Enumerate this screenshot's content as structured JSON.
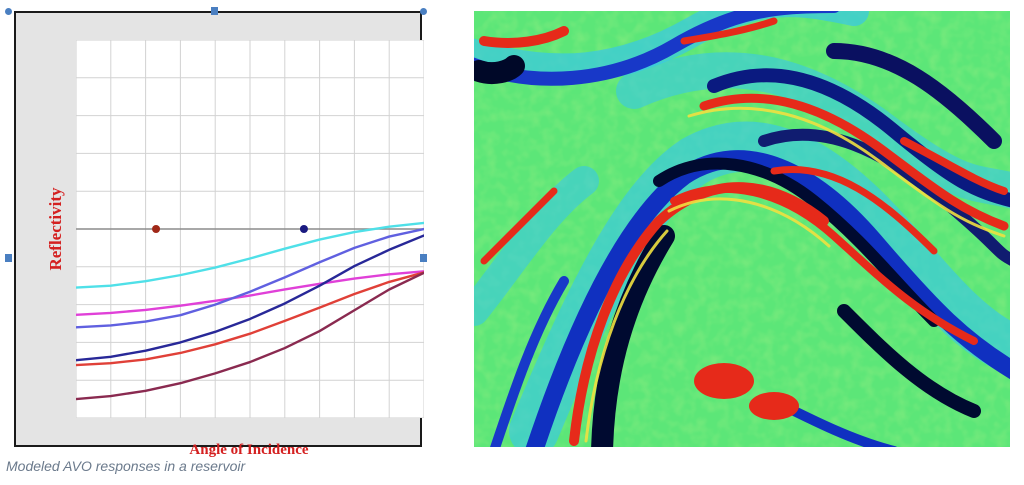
{
  "chart_data": {
    "type": "line",
    "xlabel": "Angle of Incidence",
    "ylabel": "Reflectivity",
    "title": "",
    "xlim": [
      0,
      10
    ],
    "ylim": [
      -5,
      5
    ],
    "grid": true,
    "x": [
      0,
      1,
      2,
      3,
      4,
      5,
      6,
      7,
      8,
      9,
      10
    ],
    "series": [
      {
        "color": "#4fe0e8",
        "values": [
          -1.55,
          -1.5,
          -1.38,
          -1.22,
          -1.02,
          -0.78,
          -0.52,
          -0.28,
          -0.08,
          0.06,
          0.16
        ]
      },
      {
        "color": "#e040d8",
        "values": [
          -2.27,
          -2.22,
          -2.14,
          -2.03,
          -1.9,
          -1.76,
          -1.6,
          -1.45,
          -1.31,
          -1.2,
          -1.12
        ]
      },
      {
        "color": "#6060e0",
        "values": [
          -2.6,
          -2.55,
          -2.45,
          -2.28,
          -2.0,
          -1.66,
          -1.28,
          -0.88,
          -0.5,
          -0.2,
          0.0
        ]
      },
      {
        "color": "#282898",
        "values": [
          -3.47,
          -3.38,
          -3.22,
          -3.0,
          -2.72,
          -2.38,
          -1.97,
          -1.5,
          -0.98,
          -0.55,
          -0.17
        ]
      },
      {
        "color": "#e04038",
        "values": [
          -3.6,
          -3.55,
          -3.45,
          -3.28,
          -3.05,
          -2.77,
          -2.43,
          -2.08,
          -1.72,
          -1.4,
          -1.15
        ]
      },
      {
        "color": "#8a2a50",
        "values": [
          -4.5,
          -4.42,
          -4.28,
          -4.08,
          -3.82,
          -3.52,
          -3.15,
          -2.7,
          -2.15,
          -1.6,
          -1.16
        ]
      }
    ],
    "points": [
      {
        "x": 2.3,
        "y": 0,
        "color": "#a02818"
      },
      {
        "x": 6.55,
        "y": 0,
        "color": "#1a1a80"
      }
    ]
  },
  "caption": "Modeled AVO responses in a reservoir"
}
